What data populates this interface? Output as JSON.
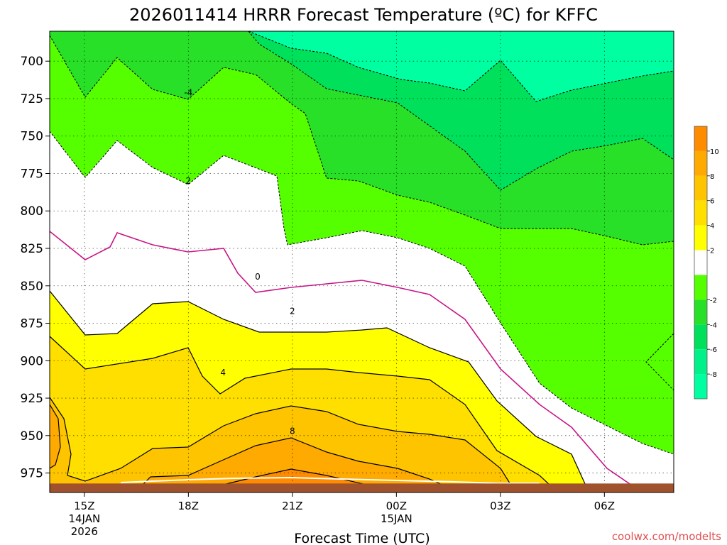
{
  "chart_data": {
    "type": "heatmap",
    "title": "2026011414 HRRR Forecast Temperature (ºC) for KFFC",
    "xlabel": "Forecast Time (UTC)",
    "ylabel": "",
    "credit": "coolwx.com/modelts",
    "x_ticks": [
      {
        "label": "15Z",
        "sub1": "14JAN",
        "sub2": "2026"
      },
      {
        "label": "18Z",
        "sub1": "",
        "sub2": ""
      },
      {
        "label": "21Z",
        "sub1": "",
        "sub2": ""
      },
      {
        "label": "00Z",
        "sub1": "15JAN",
        "sub2": ""
      },
      {
        "label": "03Z",
        "sub1": "",
        "sub2": ""
      },
      {
        "label": "06Z",
        "sub1": "",
        "sub2": ""
      }
    ],
    "x_tick_hours": [
      15,
      18,
      21,
      24,
      27,
      30
    ],
    "x_range_hours": [
      14,
      32
    ],
    "y_ticks": [
      700,
      725,
      750,
      775,
      800,
      825,
      850,
      875,
      900,
      925,
      950,
      975
    ],
    "y_range_mb": [
      680,
      988
    ],
    "surface_mb": 982,
    "colorbar": {
      "min": -10,
      "max": 12,
      "step": 2,
      "labels": [
        "10",
        "8",
        "6",
        "4",
        "2",
        "-2",
        "-4",
        "-6",
        "-8"
      ],
      "label_values": [
        10,
        8,
        6,
        4,
        2,
        -2,
        -4,
        -6,
        -8
      ],
      "colors": {
        "-10": "#00ffa0",
        "-8": "#00f08a",
        "-6": "#00e05a",
        "-4": "#28e028",
        "-2": "#55ff00",
        "0": "#ffffff",
        "2": "#ffff00",
        "4": "#ffdf00",
        "6": "#ffc400",
        "8": "#ffaa00",
        "10": "#ff8c00"
      }
    },
    "contour_labels": [
      {
        "text": "-4",
        "x": 18,
        "y": 721
      },
      {
        "text": "2",
        "x": 18,
        "y": 780
      },
      {
        "text": "0",
        "x": 20,
        "y": 844
      },
      {
        "text": "2",
        "x": 21,
        "y": 867
      },
      {
        "text": "4",
        "x": 19,
        "y": 908
      },
      {
        "text": "8",
        "x": 21,
        "y": 947
      }
    ]
  }
}
